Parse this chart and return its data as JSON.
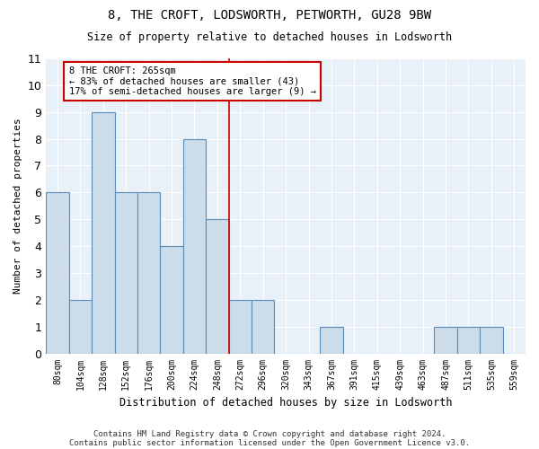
{
  "title1": "8, THE CROFT, LODSWORTH, PETWORTH, GU28 9BW",
  "title2": "Size of property relative to detached houses in Lodsworth",
  "xlabel": "Distribution of detached houses by size in Lodsworth",
  "ylabel": "Number of detached properties",
  "bin_labels": [
    "80sqm",
    "104sqm",
    "128sqm",
    "152sqm",
    "176sqm",
    "200sqm",
    "224sqm",
    "248sqm",
    "272sqm",
    "296sqm",
    "320sqm",
    "343sqm",
    "367sqm",
    "391sqm",
    "415sqm",
    "439sqm",
    "463sqm",
    "487sqm",
    "511sqm",
    "535sqm",
    "559sqm"
  ],
  "bar_heights": [
    6,
    2,
    9,
    6,
    6,
    4,
    8,
    5,
    2,
    2,
    0,
    0,
    1,
    0,
    0,
    0,
    0,
    1,
    1,
    1,
    0
  ],
  "bar_color": "#ccdce8",
  "bar_edgecolor": "#5b8db8",
  "vline_x": 8.0,
  "vline_color": "#cc0000",
  "annotation_text": "8 THE CROFT: 265sqm\n← 83% of detached houses are smaller (43)\n17% of semi-detached houses are larger (9) →",
  "annotation_box_edgecolor": "#cc0000",
  "ylim": [
    0,
    11
  ],
  "yticks": [
    0,
    1,
    2,
    3,
    4,
    5,
    6,
    7,
    8,
    9,
    10,
    11
  ],
  "footer1": "Contains HM Land Registry data © Crown copyright and database right 2024.",
  "footer2": "Contains public sector information licensed under the Open Government Licence v3.0.",
  "bg_color": "#ffffff",
  "plot_bg_color": "#e8f0f8"
}
